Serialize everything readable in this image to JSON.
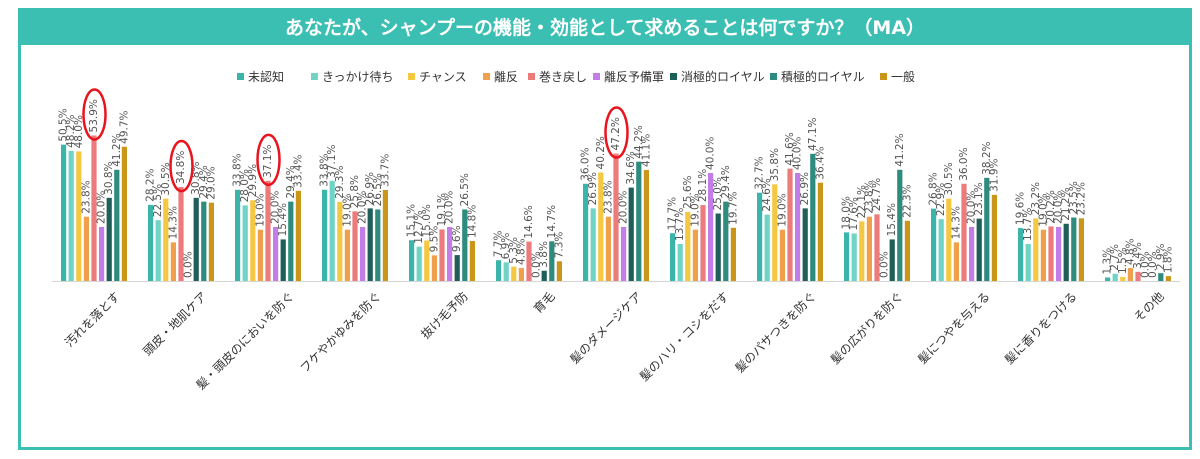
{
  "title": "あなたが、シャンプーの機能・効能として求めることは何ですか？（MA）",
  "colors": [
    "#3bb4a9",
    "#6fd3c6",
    "#f5c842",
    "#f0a04b",
    "#ec7b7b",
    "#c27de8",
    "#1f5f5a",
    "#2e8c7f",
    "#c9961a"
  ],
  "highlight_color": "#e8141e",
  "chart_data": {
    "type": "bar",
    "title": "あなたが、シャンプーの機能・効能として求めることは何ですか？（MA）",
    "xlabel": "",
    "ylabel": "",
    "ylim": [
      0,
      60
    ],
    "grid": false,
    "legend": "top",
    "categories": [
      "汚れを落とす",
      "頭皮・地肌ケア",
      "髪・頭皮のにおいを防ぐ",
      "フケやかゆみを防ぐ",
      "抜け毛予防",
      "育毛",
      "髪のダメージケア",
      "髪のハリ・コシをだす",
      "髪のパサつきを防ぐ",
      "髪の広がりを防ぐ",
      "髪につやを与える",
      "髪に香りをつける",
      "その他"
    ],
    "series": [
      {
        "name": "未認知",
        "values": [
          50.5,
          28.2,
          33.8,
          33.8,
          15.1,
          7.7,
          36.0,
          17.7,
          32.7,
          18.0,
          26.8,
          19.6,
          1.3
        ]
      },
      {
        "name": "きっかけ待ち",
        "values": [
          48.2,
          22.5,
          28.0,
          37.1,
          12.7,
          6.9,
          26.9,
          13.7,
          24.6,
          17.6,
          22.9,
          13.7,
          2.7
        ]
      },
      {
        "name": "チャンス",
        "values": [
          48.0,
          30.5,
          29.9,
          29.3,
          15.0,
          5.3,
          40.2,
          25.6,
          35.8,
          22.1,
          30.5,
          23.2,
          1.5
        ]
      },
      {
        "name": "離反",
        "values": [
          23.8,
          14.3,
          19.0,
          19.0,
          9.5,
          4.8,
          23.8,
          19.0,
          19.0,
          23.8,
          14.3,
          19.0,
          4.8
        ]
      },
      {
        "name": "巻き戻し",
        "values": [
          53.9,
          34.8,
          37.1,
          25.8,
          19.1,
          14.6,
          47.2,
          28.1,
          41.6,
          24.7,
          36.0,
          20.2,
          3.4
        ]
      },
      {
        "name": "離反予備軍",
        "values": [
          20.0,
          0.0,
          20.0,
          20.0,
          20.0,
          0.0,
          20.0,
          40.0,
          40.0,
          0.0,
          20.0,
          20.0,
          0.0
        ]
      },
      {
        "name": "消極的ロイヤル",
        "values": [
          30.8,
          30.8,
          15.4,
          26.9,
          9.6,
          3.8,
          34.6,
          25.0,
          26.9,
          15.4,
          23.1,
          21.2,
          0.0
        ]
      },
      {
        "name": "積極的ロイヤル",
        "values": [
          41.2,
          29.4,
          29.4,
          26.5,
          26.5,
          14.7,
          44.2,
          29.4,
          47.1,
          41.2,
          38.2,
          23.5,
          2.9
        ]
      },
      {
        "name": "一般",
        "values": [
          49.7,
          29.0,
          33.4,
          33.7,
          14.8,
          7.3,
          41.1,
          19.7,
          36.4,
          22.3,
          31.9,
          23.2,
          1.8
        ]
      }
    ],
    "annotations": [
      {
        "category": "汚れを落とす",
        "series": "巻き戻し",
        "shape": "ellipse"
      },
      {
        "category": "頭皮・地肌ケア",
        "series": "巻き戻し",
        "shape": "ellipse"
      },
      {
        "category": "髪・頭皮のにおいを防ぐ",
        "series": "巻き戻し",
        "shape": "ellipse"
      },
      {
        "category": "髪のダメージケア",
        "series": "巻き戻し",
        "shape": "ellipse"
      }
    ]
  }
}
